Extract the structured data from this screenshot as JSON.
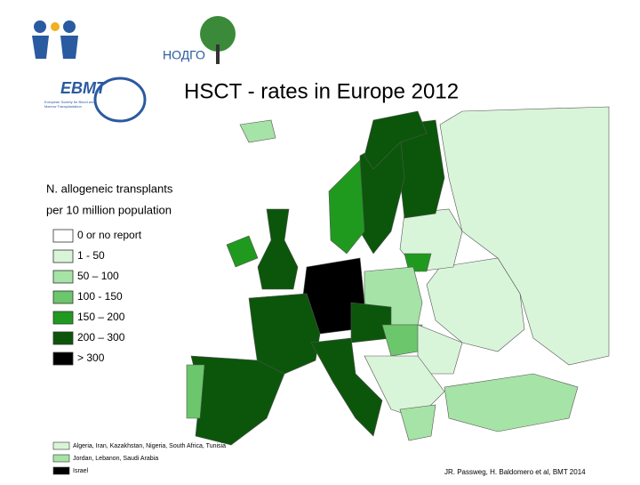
{
  "logos": {
    "ngo": "НОДГО",
    "ebmt": "EBMT",
    "ebmt_subtitle": "European Society for Blood and Marrow Transplantation"
  },
  "title": "HSCT - rates in Europe 2012",
  "legend": {
    "title_line1": "N. allogeneic transplants",
    "title_line2": "per 10 million population",
    "items": [
      {
        "label": "0 or no report",
        "color": "#ffffff"
      },
      {
        "label": "1 - 50",
        "color": "#d9f5d9"
      },
      {
        "label": "50 – 100",
        "color": "#a6e3a6"
      },
      {
        "label": "100 - 150",
        "color": "#6cc66c"
      },
      {
        "label": "150 – 200",
        "color": "#1f9a1f"
      },
      {
        "label": "200 – 300",
        "color": "#0b560b"
      },
      {
        "label": "> 300",
        "color": "#000000"
      }
    ]
  },
  "footnote": [
    {
      "label": "Algeria, Iran, Kazakhstan, Nigeria, South Africa, Tunisia",
      "color": "#d9f5d9"
    },
    {
      "label": "Jordan, Lebanon, Saudi Arabia",
      "color": "#a6e3a6"
    },
    {
      "label": "Israel",
      "color": "#000000"
    }
  ],
  "citation": "JR. Passweg, H. Baldomero et al, BMT 2014"
}
